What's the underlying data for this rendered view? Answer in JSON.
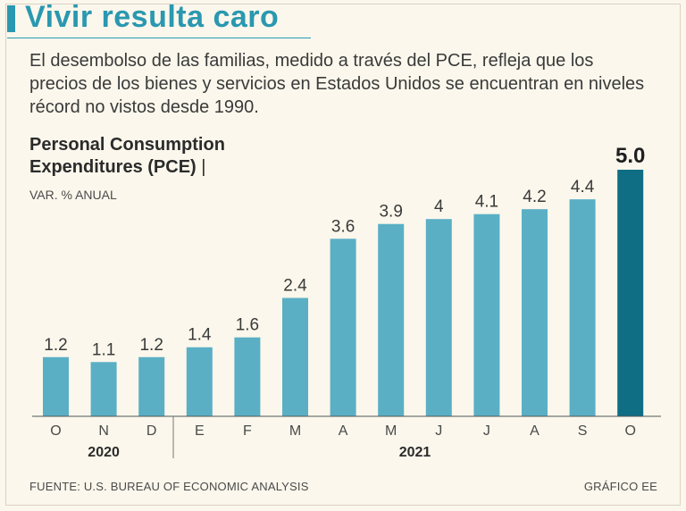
{
  "header": {
    "title": "Vivir resulta caro",
    "subtitle": "El desembolso de las familias, medido a través del PCE, refleja que los precios de los bienes y servicios en Estados Unidos se encuentran en niveles récord no vistos desde 1990."
  },
  "chart_data": {
    "type": "bar",
    "title_line1": "Personal Consumption",
    "title_line2": "Expenditures (PCE)",
    "title_separator": "|",
    "ylabel": "VAR. % ANUAL",
    "categories": [
      "O",
      "N",
      "D",
      "E",
      "F",
      "M",
      "A",
      "M",
      "J",
      "J",
      "A",
      "S",
      "O"
    ],
    "values": [
      1.2,
      1.1,
      1.2,
      1.4,
      1.6,
      2.4,
      3.6,
      3.9,
      4.0,
      4.1,
      4.2,
      4.4,
      5.0
    ],
    "value_labels": [
      "1.2",
      "1.1",
      "1.2",
      "1.4",
      "1.6",
      "2.4",
      "3.6",
      "3.9",
      "4",
      "4.1",
      "4.2",
      "4.4",
      "5.0"
    ],
    "highlight_index": 12,
    "year_groups": [
      {
        "label": "2020",
        "from_index": 0,
        "to_index": 2
      },
      {
        "label": "2021",
        "from_index": 3,
        "to_index": 12
      }
    ],
    "ylim": [
      0,
      5.0
    ],
    "grid": false,
    "colors": {
      "bar": "#5aafc5",
      "highlight": "#0f6e84"
    }
  },
  "footer": {
    "source": "FUENTE: U.S. BUREAU OF ECONOMIC ANALYSIS",
    "credit": "GRÁFICO EE"
  }
}
